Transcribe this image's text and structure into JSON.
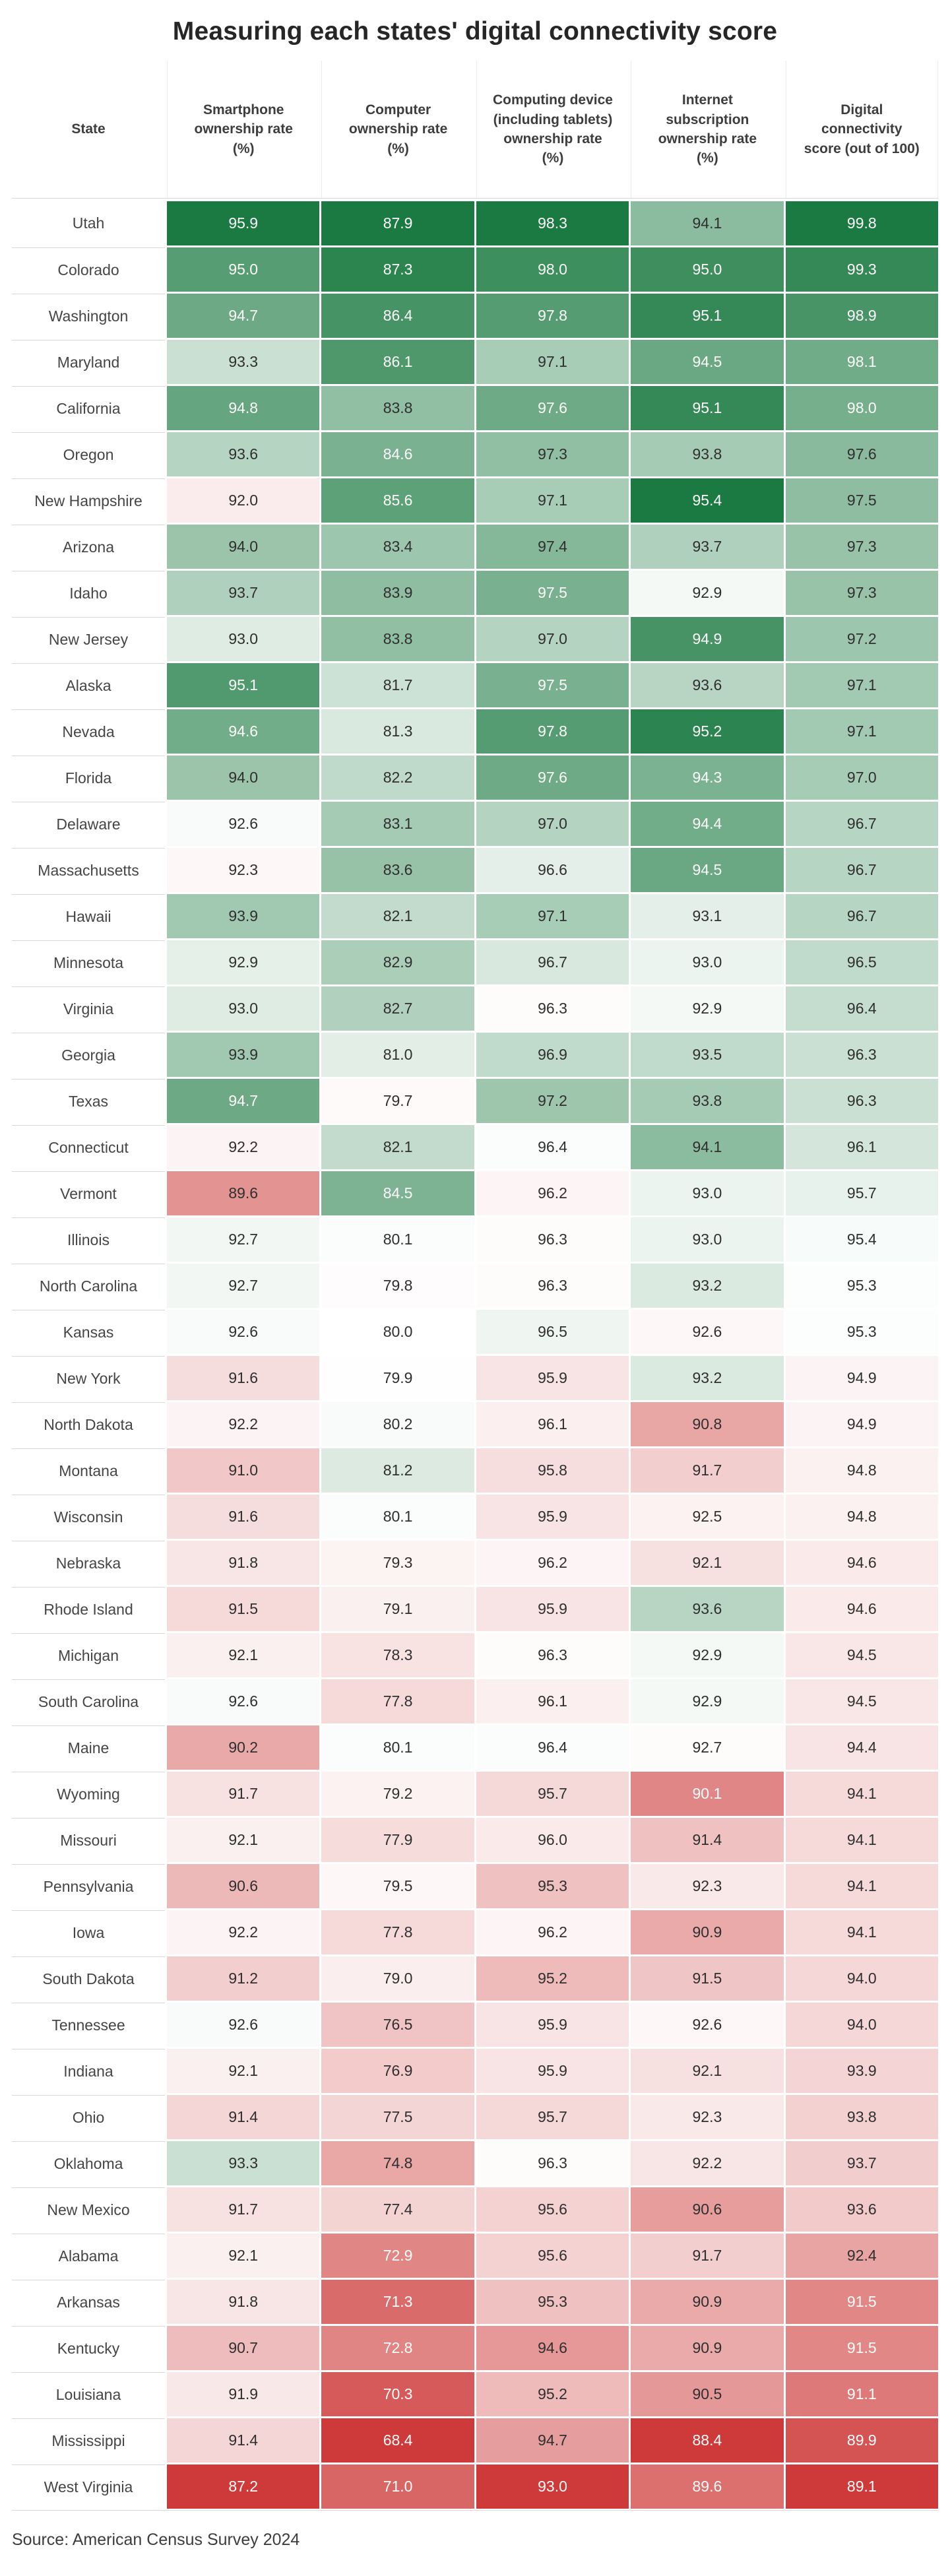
{
  "title": "Measuring each states' digital connectivity score",
  "source": "Source: American Census Survey 2024",
  "colors": {
    "scale_positive_end": "#1b7a41",
    "scale_negative_end": "#cd3a39",
    "scale_midpoint": "#ffffff",
    "text_on_dark": "#fdfdfc",
    "text_on_light": "#2f2f2f",
    "divider": "#d9d9d9"
  },
  "chart_data": {
    "type": "heatmap",
    "title": "Measuring each states' digital connectivity score",
    "color_scale": "diverging red-white-green, computed per column relative to column mean (white) and column min/max (full red/green)",
    "columns": [
      "State",
      "Smartphone ownership rate (%)",
      "Computer ownership rate (%)",
      "Computing device (including tablets) ownership rate (%)",
      "Internet subscription ownership rate (%)",
      "Digital connectivity score (out of 100)"
    ],
    "rows": [
      [
        "Utah",
        95.9,
        87.9,
        98.3,
        94.1,
        99.8
      ],
      [
        "Colorado",
        95.0,
        87.3,
        98.0,
        95.0,
        99.3
      ],
      [
        "Washington",
        94.7,
        86.4,
        97.8,
        95.1,
        98.9
      ],
      [
        "Maryland",
        93.3,
        86.1,
        97.1,
        94.5,
        98.1
      ],
      [
        "California",
        94.8,
        83.8,
        97.6,
        95.1,
        98.0
      ],
      [
        "Oregon",
        93.6,
        84.6,
        97.3,
        93.8,
        97.6
      ],
      [
        "New Hampshire",
        92.0,
        85.6,
        97.1,
        95.4,
        97.5
      ],
      [
        "Arizona",
        94.0,
        83.4,
        97.4,
        93.7,
        97.3
      ],
      [
        "Idaho",
        93.7,
        83.9,
        97.5,
        92.9,
        97.3
      ],
      [
        "New Jersey",
        93.0,
        83.8,
        97.0,
        94.9,
        97.2
      ],
      [
        "Alaska",
        95.1,
        81.7,
        97.5,
        93.6,
        97.1
      ],
      [
        "Nevada",
        94.6,
        81.3,
        97.8,
        95.2,
        97.1
      ],
      [
        "Florida",
        94.0,
        82.2,
        97.6,
        94.3,
        97.0
      ],
      [
        "Delaware",
        92.6,
        83.1,
        97.0,
        94.4,
        96.7
      ],
      [
        "Massachusetts",
        92.3,
        83.6,
        96.6,
        94.5,
        96.7
      ],
      [
        "Hawaii",
        93.9,
        82.1,
        97.1,
        93.1,
        96.7
      ],
      [
        "Minnesota",
        92.9,
        82.9,
        96.7,
        93.0,
        96.5
      ],
      [
        "Virginia",
        93.0,
        82.7,
        96.3,
        92.9,
        96.4
      ],
      [
        "Georgia",
        93.9,
        81.0,
        96.9,
        93.5,
        96.3
      ],
      [
        "Texas",
        94.7,
        79.7,
        97.2,
        93.8,
        96.3
      ],
      [
        "Connecticut",
        92.2,
        82.1,
        96.4,
        94.1,
        96.1
      ],
      [
        "Vermont",
        89.6,
        84.5,
        96.2,
        93.0,
        95.7
      ],
      [
        "Illinois",
        92.7,
        80.1,
        96.3,
        93.0,
        95.4
      ],
      [
        "North Carolina",
        92.7,
        79.8,
        96.3,
        93.2,
        95.3
      ],
      [
        "Kansas",
        92.6,
        80.0,
        96.5,
        92.6,
        95.3
      ],
      [
        "New York",
        91.6,
        79.9,
        95.9,
        93.2,
        94.9
      ],
      [
        "North Dakota",
        92.2,
        80.2,
        96.1,
        90.8,
        94.9
      ],
      [
        "Montana",
        91.0,
        81.2,
        95.8,
        91.7,
        94.8
      ],
      [
        "Wisconsin",
        91.6,
        80.1,
        95.9,
        92.5,
        94.8
      ],
      [
        "Nebraska",
        91.8,
        79.3,
        96.2,
        92.1,
        94.6
      ],
      [
        "Rhode Island",
        91.5,
        79.1,
        95.9,
        93.6,
        94.6
      ],
      [
        "Michigan",
        92.1,
        78.3,
        96.3,
        92.9,
        94.5
      ],
      [
        "South Carolina",
        92.6,
        77.8,
        96.1,
        92.9,
        94.5
      ],
      [
        "Maine",
        90.2,
        80.1,
        96.4,
        92.7,
        94.4
      ],
      [
        "Wyoming",
        91.7,
        79.2,
        95.7,
        90.1,
        94.1
      ],
      [
        "Missouri",
        92.1,
        77.9,
        96.0,
        91.4,
        94.1
      ],
      [
        "Pennsylvania",
        90.6,
        79.5,
        95.3,
        92.3,
        94.1
      ],
      [
        "Iowa",
        92.2,
        77.8,
        96.2,
        90.9,
        94.1
      ],
      [
        "South Dakota",
        91.2,
        79.0,
        95.2,
        91.5,
        94.0
      ],
      [
        "Tennessee",
        92.6,
        76.5,
        95.9,
        92.6,
        94.0
      ],
      [
        "Indiana",
        92.1,
        76.9,
        95.9,
        92.1,
        93.9
      ],
      [
        "Ohio",
        91.4,
        77.5,
        95.7,
        92.3,
        93.8
      ],
      [
        "Oklahoma",
        93.3,
        74.8,
        96.3,
        92.2,
        93.7
      ],
      [
        "New Mexico",
        91.7,
        77.4,
        95.6,
        90.6,
        93.6
      ],
      [
        "Alabama",
        92.1,
        72.9,
        95.6,
        91.7,
        92.4
      ],
      [
        "Arkansas",
        91.8,
        71.3,
        95.3,
        90.9,
        91.5
      ],
      [
        "Kentucky",
        90.7,
        72.8,
        94.6,
        90.9,
        91.5
      ],
      [
        "Louisiana",
        91.9,
        70.3,
        95.2,
        90.5,
        91.1
      ],
      [
        "Mississippi",
        91.4,
        68.4,
        94.7,
        88.4,
        89.9
      ],
      [
        "West Virginia",
        87.2,
        71.0,
        93.0,
        89.6,
        89.1
      ]
    ]
  }
}
